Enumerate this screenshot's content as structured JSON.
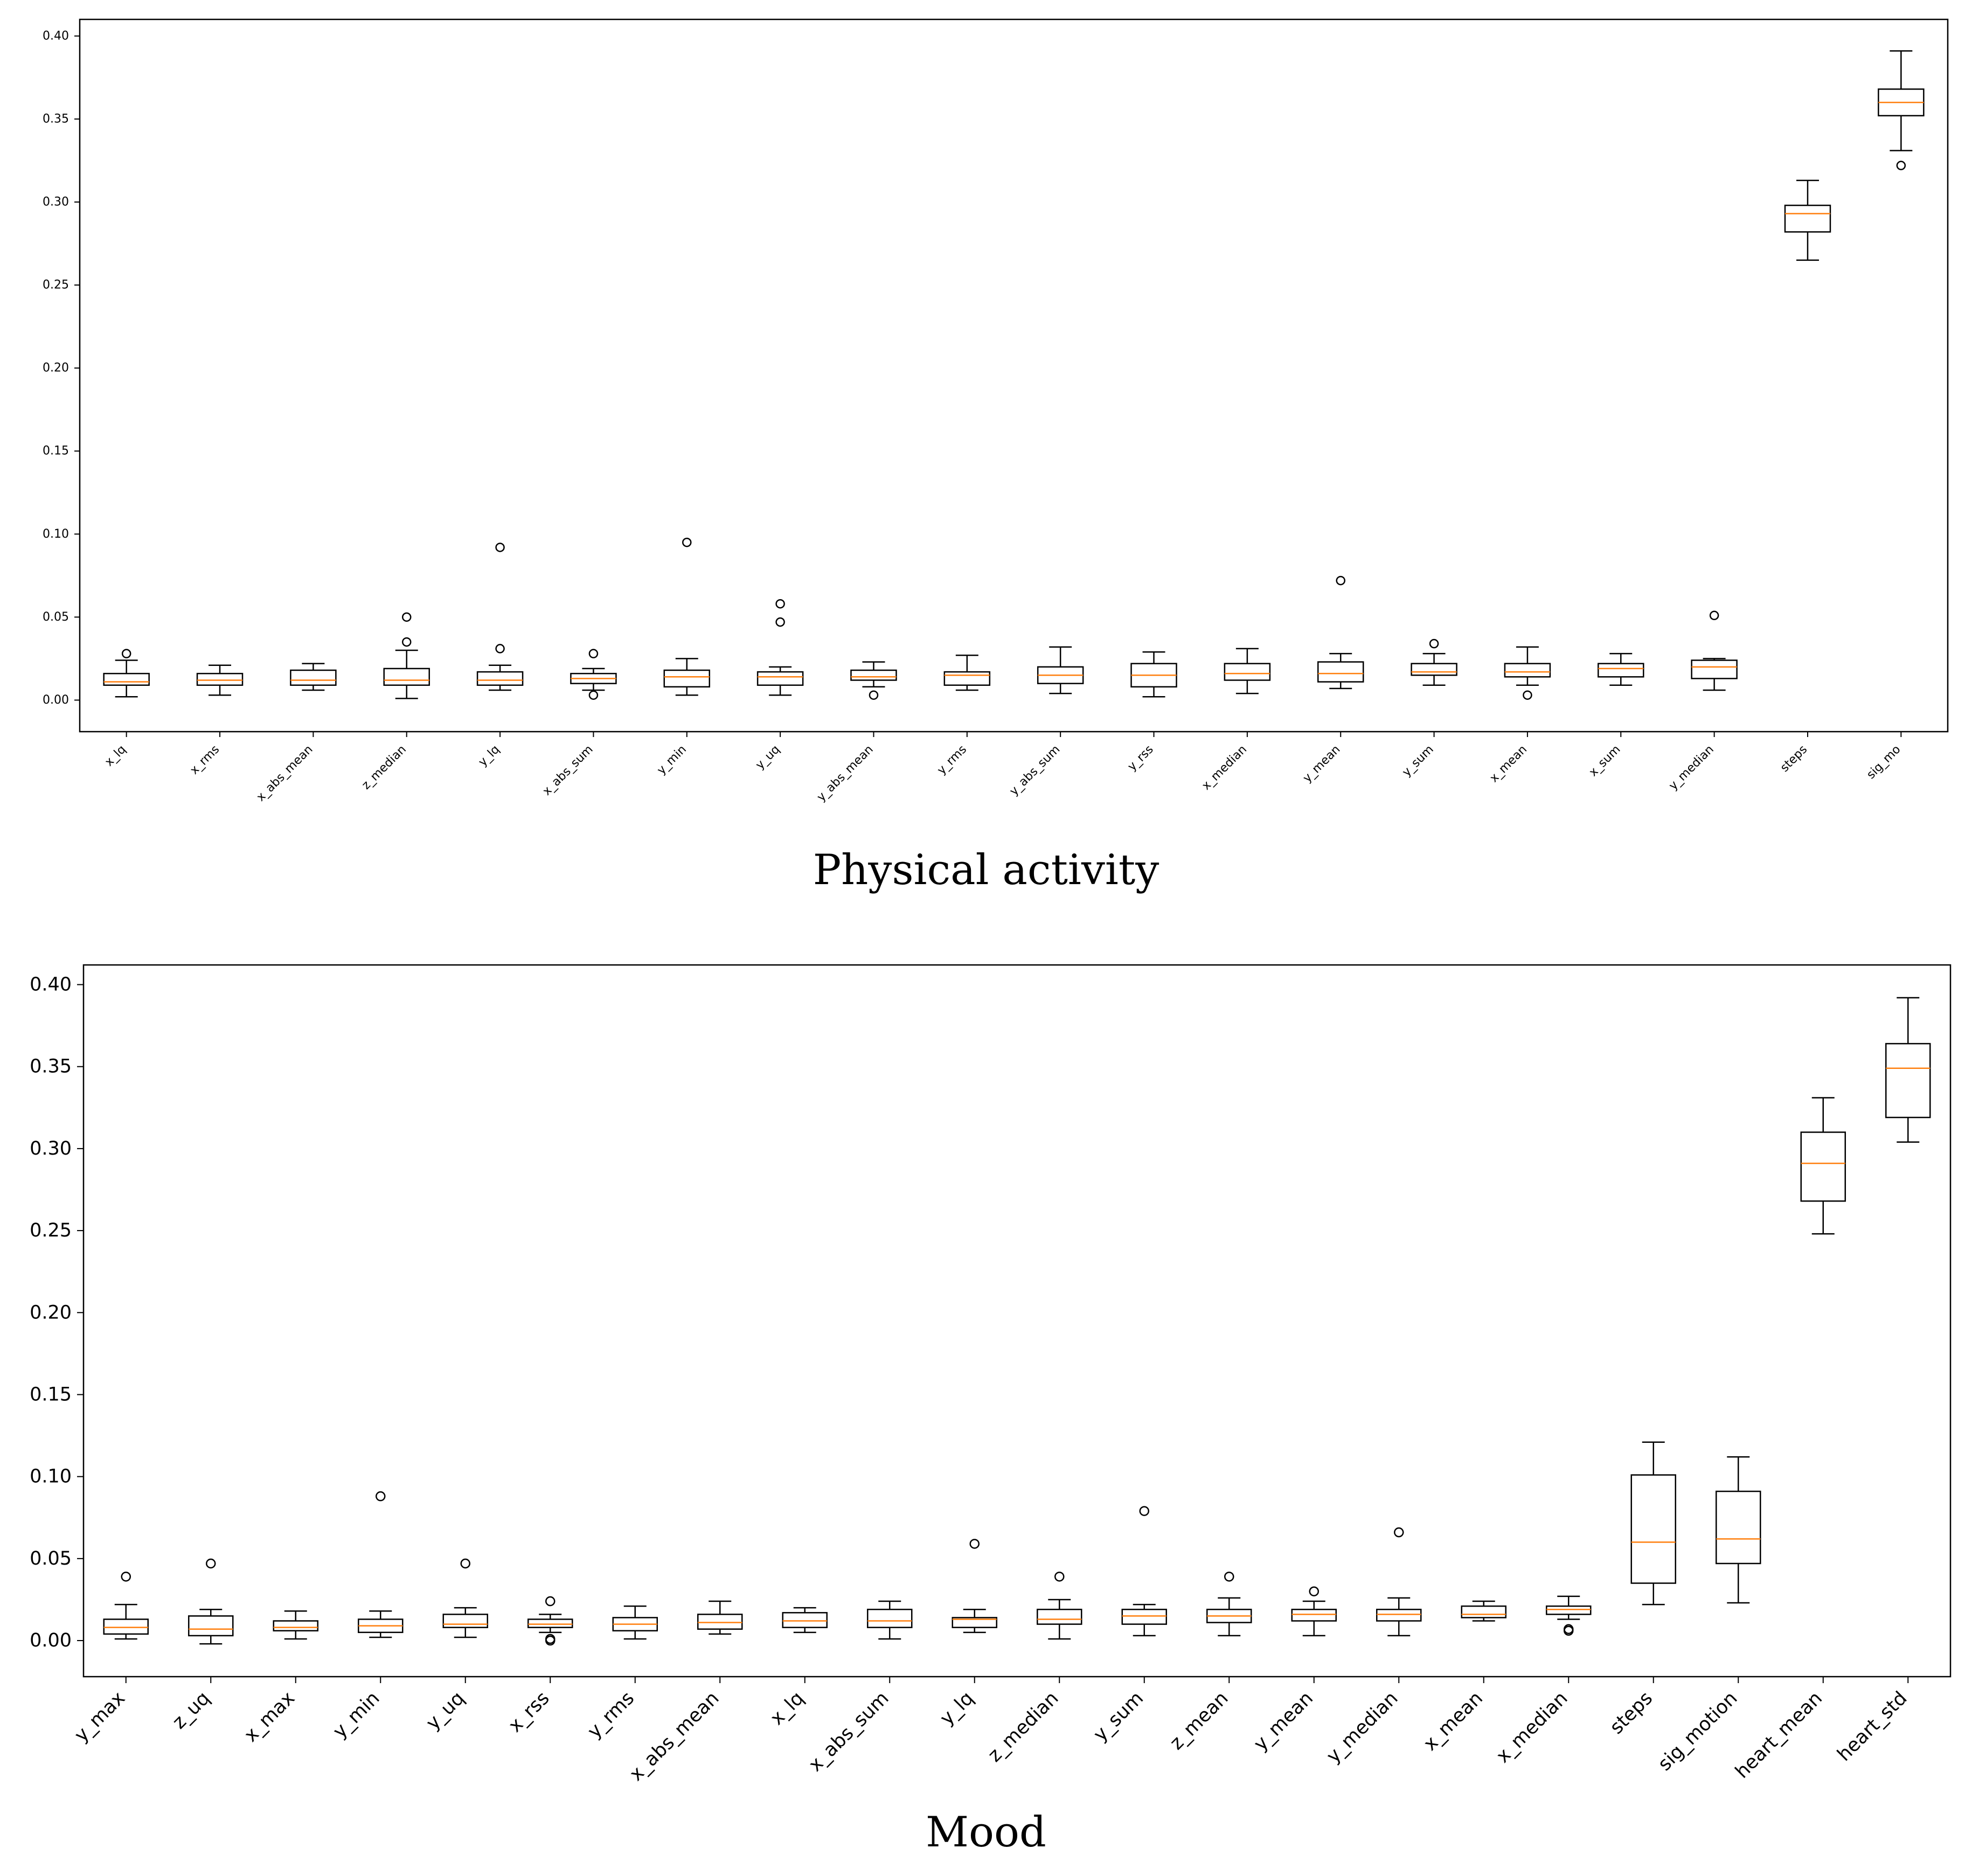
{
  "chart_data": [
    {
      "type": "box",
      "caption": "Physical activity",
      "ylim": [
        -0.019,
        0.41
      ],
      "yticks": [
        "0.00",
        "0.05",
        "0.10",
        "0.15",
        "0.20",
        "0.25",
        "0.30",
        "0.35",
        "0.40"
      ],
      "ytick_values": [
        0,
        0.05,
        0.1,
        0.15,
        0.2,
        0.25,
        0.3,
        0.35,
        0.4
      ],
      "grid": false,
      "colors": {
        "median": "#ff7f0e",
        "box": "#000000",
        "flier": "#000000"
      },
      "categories": [
        "x_lq",
        "x_rms",
        "x_abs_mean",
        "z_median",
        "y_lq",
        "x_abs_sum",
        "y_min",
        "y_uq",
        "y_abs_mean",
        "y_rms",
        "y_abs_sum",
        "y_rss",
        "x_median",
        "y_mean",
        "y_sum",
        "x_mean",
        "x_sum",
        "y_median",
        "steps",
        "sig_mo"
      ],
      "boxes": [
        {
          "label": "x_lq",
          "whislo": 0.002,
          "q1": 0.009,
          "med": 0.011,
          "q3": 0.016,
          "whishi": 0.024,
          "fliers": [
            0.028
          ]
        },
        {
          "label": "x_rms",
          "whislo": 0.003,
          "q1": 0.009,
          "med": 0.012,
          "q3": 0.016,
          "whishi": 0.021,
          "fliers": []
        },
        {
          "label": "x_abs_mean",
          "whislo": 0.006,
          "q1": 0.009,
          "med": 0.012,
          "q3": 0.018,
          "whishi": 0.022,
          "fliers": []
        },
        {
          "label": "z_median",
          "whislo": 0.001,
          "q1": 0.009,
          "med": 0.012,
          "q3": 0.019,
          "whishi": 0.03,
          "fliers": [
            0.035,
            0.05
          ]
        },
        {
          "label": "y_lq",
          "whislo": 0.006,
          "q1": 0.009,
          "med": 0.012,
          "q3": 0.017,
          "whishi": 0.021,
          "fliers": [
            0.031,
            0.092
          ]
        },
        {
          "label": "x_abs_sum",
          "whislo": 0.006,
          "q1": 0.01,
          "med": 0.013,
          "q3": 0.016,
          "whishi": 0.019,
          "fliers": [
            0.003,
            0.028
          ]
        },
        {
          "label": "y_min",
          "whislo": 0.003,
          "q1": 0.008,
          "med": 0.014,
          "q3": 0.018,
          "whishi": 0.025,
          "fliers": [
            0.095
          ]
        },
        {
          "label": "y_uq",
          "whislo": 0.003,
          "q1": 0.009,
          "med": 0.014,
          "q3": 0.017,
          "whishi": 0.02,
          "fliers": [
            0.047,
            0.058
          ]
        },
        {
          "label": "y_abs_mean",
          "whislo": 0.008,
          "q1": 0.012,
          "med": 0.014,
          "q3": 0.018,
          "whishi": 0.023,
          "fliers": [
            0.003
          ]
        },
        {
          "label": "y_rms",
          "whislo": 0.006,
          "q1": 0.009,
          "med": 0.015,
          "q3": 0.017,
          "whishi": 0.027,
          "fliers": []
        },
        {
          "label": "y_abs_sum",
          "whislo": 0.004,
          "q1": 0.01,
          "med": 0.015,
          "q3": 0.02,
          "whishi": 0.032,
          "fliers": []
        },
        {
          "label": "y_rss",
          "whislo": 0.002,
          "q1": 0.008,
          "med": 0.015,
          "q3": 0.022,
          "whishi": 0.029,
          "fliers": []
        },
        {
          "label": "x_median",
          "whislo": 0.004,
          "q1": 0.012,
          "med": 0.016,
          "q3": 0.022,
          "whishi": 0.031,
          "fliers": []
        },
        {
          "label": "y_mean",
          "whislo": 0.007,
          "q1": 0.011,
          "med": 0.016,
          "q3": 0.023,
          "whishi": 0.028,
          "fliers": [
            0.072
          ]
        },
        {
          "label": "y_sum",
          "whislo": 0.009,
          "q1": 0.015,
          "med": 0.017,
          "q3": 0.022,
          "whishi": 0.028,
          "fliers": [
            0.034
          ]
        },
        {
          "label": "x_mean",
          "whislo": 0.009,
          "q1": 0.014,
          "med": 0.017,
          "q3": 0.022,
          "whishi": 0.032,
          "fliers": [
            0.003
          ]
        },
        {
          "label": "x_sum",
          "whislo": 0.009,
          "q1": 0.014,
          "med": 0.019,
          "q3": 0.022,
          "whishi": 0.028,
          "fliers": []
        },
        {
          "label": "y_median",
          "whislo": 0.006,
          "q1": 0.013,
          "med": 0.02,
          "q3": 0.024,
          "whishi": 0.025,
          "fliers": [
            0.051
          ]
        },
        {
          "label": "steps",
          "whislo": 0.265,
          "q1": 0.282,
          "med": 0.293,
          "q3": 0.298,
          "whishi": 0.313,
          "fliers": []
        },
        {
          "label": "sig_mo",
          "whislo": 0.331,
          "q1": 0.352,
          "med": 0.36,
          "q3": 0.368,
          "whishi": 0.391,
          "fliers": [
            0.322
          ]
        }
      ]
    },
    {
      "type": "box",
      "caption": "Mood",
      "ylim": [
        -0.022,
        0.412
      ],
      "yticks": [
        "0.00",
        "0.05",
        "0.10",
        "0.15",
        "0.20",
        "0.25",
        "0.30",
        "0.35",
        "0.40"
      ],
      "ytick_values": [
        0,
        0.05,
        0.1,
        0.15,
        0.2,
        0.25,
        0.3,
        0.35,
        0.4
      ],
      "grid": false,
      "colors": {
        "median": "#ff7f0e",
        "box": "#000000",
        "flier": "#000000"
      },
      "categories": [
        "y_max",
        "z_uq",
        "x_max",
        "y_min",
        "y_uq",
        "x_rss",
        "y_rms",
        "x_abs_mean",
        "x_lq",
        "x_abs_sum",
        "y_lq",
        "z_median",
        "y_sum",
        "z_mean",
        "y_mean",
        "y_median",
        "x_mean",
        "x_median",
        "steps",
        "sig_motion",
        "heart_mean",
        "heart_std"
      ],
      "boxes": [
        {
          "label": "y_max",
          "whislo": 0.001,
          "q1": 0.004,
          "med": 0.008,
          "q3": 0.013,
          "whishi": 0.022,
          "fliers": [
            0.039
          ]
        },
        {
          "label": "z_uq",
          "whislo": -0.002,
          "q1": 0.003,
          "med": 0.007,
          "q3": 0.015,
          "whishi": 0.019,
          "fliers": [
            0.047
          ]
        },
        {
          "label": "x_max",
          "whislo": 0.001,
          "q1": 0.006,
          "med": 0.008,
          "q3": 0.012,
          "whishi": 0.018,
          "fliers": []
        },
        {
          "label": "y_min",
          "whislo": 0.002,
          "q1": 0.005,
          "med": 0.009,
          "q3": 0.013,
          "whishi": 0.018,
          "fliers": [
            0.088
          ]
        },
        {
          "label": "y_uq",
          "whislo": 0.002,
          "q1": 0.008,
          "med": 0.01,
          "q3": 0.016,
          "whishi": 0.02,
          "fliers": [
            0.047
          ]
        },
        {
          "label": "x_rss",
          "whislo": 0.005,
          "q1": 0.008,
          "med": 0.01,
          "q3": 0.013,
          "whishi": 0.016,
          "fliers": [
            0.0,
            0.001,
            0.024
          ]
        },
        {
          "label": "y_rms",
          "whislo": 0.001,
          "q1": 0.006,
          "med": 0.01,
          "q3": 0.014,
          "whishi": 0.021,
          "fliers": []
        },
        {
          "label": "x_abs_mean",
          "whislo": 0.004,
          "q1": 0.007,
          "med": 0.011,
          "q3": 0.016,
          "whishi": 0.024,
          "fliers": []
        },
        {
          "label": "x_lq",
          "whislo": 0.005,
          "q1": 0.008,
          "med": 0.012,
          "q3": 0.017,
          "whishi": 0.02,
          "fliers": []
        },
        {
          "label": "x_abs_sum",
          "whislo": 0.001,
          "q1": 0.008,
          "med": 0.012,
          "q3": 0.019,
          "whishi": 0.024,
          "fliers": []
        },
        {
          "label": "y_lq",
          "whislo": 0.005,
          "q1": 0.008,
          "med": 0.013,
          "q3": 0.014,
          "whishi": 0.019,
          "fliers": [
            0.059
          ]
        },
        {
          "label": "z_median",
          "whislo": 0.001,
          "q1": 0.01,
          "med": 0.013,
          "q3": 0.019,
          "whishi": 0.025,
          "fliers": [
            0.039
          ]
        },
        {
          "label": "y_sum",
          "whislo": 0.003,
          "q1": 0.01,
          "med": 0.015,
          "q3": 0.019,
          "whishi": 0.022,
          "fliers": [
            0.079
          ]
        },
        {
          "label": "z_mean",
          "whislo": 0.003,
          "q1": 0.011,
          "med": 0.015,
          "q3": 0.019,
          "whishi": 0.026,
          "fliers": [
            0.039
          ]
        },
        {
          "label": "y_mean",
          "whislo": 0.003,
          "q1": 0.012,
          "med": 0.016,
          "q3": 0.019,
          "whishi": 0.024,
          "fliers": [
            0.03
          ]
        },
        {
          "label": "y_median",
          "whislo": 0.003,
          "q1": 0.012,
          "med": 0.016,
          "q3": 0.019,
          "whishi": 0.026,
          "fliers": [
            0.066
          ]
        },
        {
          "label": "x_mean",
          "whislo": 0.012,
          "q1": 0.014,
          "med": 0.016,
          "q3": 0.021,
          "whishi": 0.024,
          "fliers": []
        },
        {
          "label": "x_median",
          "whislo": 0.013,
          "q1": 0.016,
          "med": 0.019,
          "q3": 0.021,
          "whishi": 0.027,
          "fliers": [
            0.006,
            0.007
          ]
        },
        {
          "label": "steps",
          "whislo": 0.022,
          "q1": 0.035,
          "med": 0.06,
          "q3": 0.101,
          "whishi": 0.121,
          "fliers": []
        },
        {
          "label": "sig_motion",
          "whislo": 0.023,
          "q1": 0.047,
          "med": 0.062,
          "q3": 0.091,
          "whishi": 0.112,
          "fliers": []
        },
        {
          "label": "heart_mean",
          "whislo": 0.248,
          "q1": 0.268,
          "med": 0.291,
          "q3": 0.31,
          "whishi": 0.331,
          "fliers": []
        },
        {
          "label": "heart_std",
          "whislo": 0.304,
          "q1": 0.319,
          "med": 0.349,
          "q3": 0.364,
          "whishi": 0.392,
          "fliers": []
        }
      ]
    }
  ]
}
